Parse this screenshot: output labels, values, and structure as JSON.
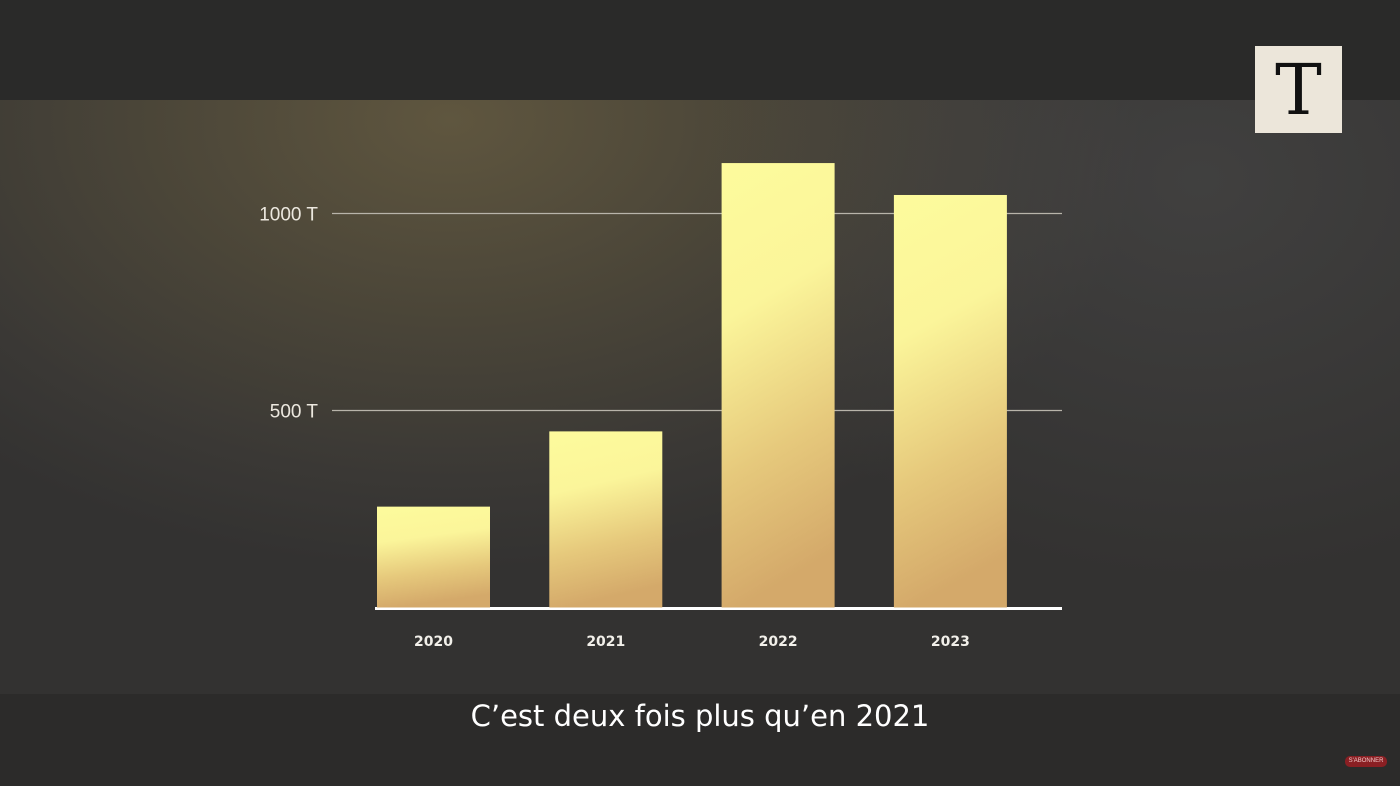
{
  "logo": {
    "letter": "T"
  },
  "subtitle": "C’est deux fois plus qu’en 2021",
  "subscribe_label": "S'ABONNER",
  "colors": {
    "bar_top": "#fdfb9c",
    "bar_bottom": "#d4a96a",
    "gridline": "#b8b4aa",
    "axis": "#ffffff"
  },
  "chart_data": {
    "type": "bar",
    "categories": [
      "2020",
      "2021",
      "2022",
      "2023"
    ],
    "values": [
      256,
      447,
      1128,
      1047
    ],
    "yticks": [
      {
        "value": 500,
        "label": "500 T"
      },
      {
        "value": 1000,
        "label": "1000 T"
      }
    ],
    "ylim": [
      0,
      1150
    ],
    "title": "",
    "xlabel": "",
    "ylabel": "",
    "grid": true
  }
}
